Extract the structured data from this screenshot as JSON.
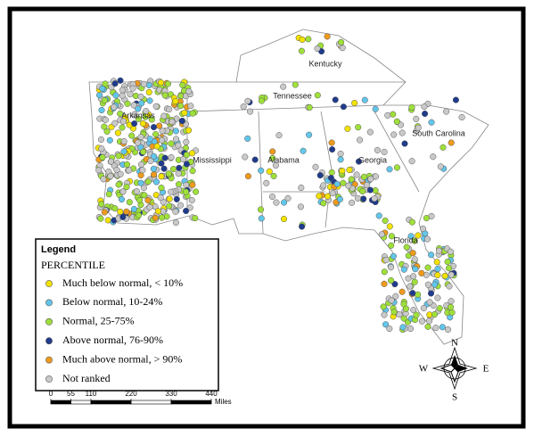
{
  "map": {
    "states": [
      "Kentucky",
      "Tennessee",
      "Arkansas",
      "Mississippi",
      "Alabama",
      "Georgia",
      "South Carolina",
      "Florida"
    ],
    "legend": {
      "title": "Legend",
      "subtitle": "PERCENTILE",
      "items": [
        {
          "label": "Much below normal, < 10%",
          "color": "#f2e200"
        },
        {
          "label": "Below normal, 10-24%",
          "color": "#62c6ea"
        },
        {
          "label": "Normal, 25-75%",
          "color": "#9fe03a"
        },
        {
          "label": "Above normal, 76-90%",
          "color": "#1f3b8c"
        },
        {
          "label": "Much above normal, > 90%",
          "color": "#ee9a1c"
        },
        {
          "label": "Not ranked",
          "color": "#c9c9c9"
        }
      ]
    },
    "scale": {
      "ticks": [
        0,
        55,
        110,
        220,
        330,
        440
      ],
      "unit": "Miles"
    },
    "compass": {
      "north": "N",
      "south": "S",
      "east": "E",
      "west": "W"
    }
  }
}
